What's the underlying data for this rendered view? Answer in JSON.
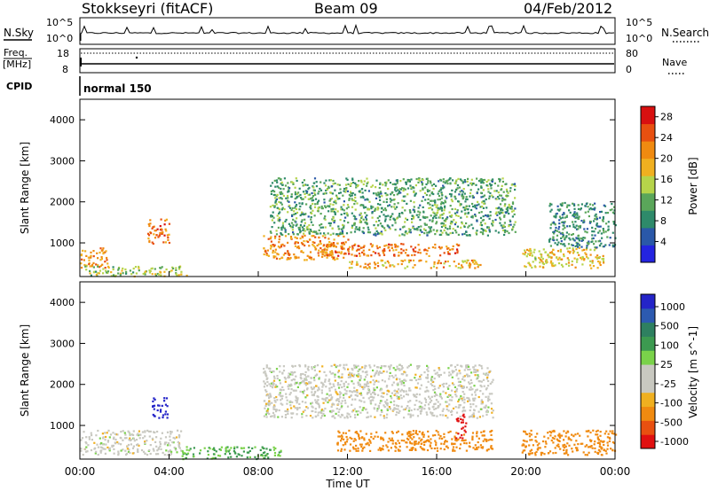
{
  "header": {
    "station": "Stokkseyri (fitACF)",
    "beam": "Beam 09",
    "date": "04/Feb/2012"
  },
  "noise_panel": {
    "left_label": "N.Sky",
    "right_label": "N.Search",
    "top_tick": "10^5",
    "bottom_tick": "10^0"
  },
  "freq_panel": {
    "left_label": "Freq.",
    "left_unit": "[MHz]",
    "left_ticks": [
      "18",
      "8"
    ],
    "right_label": "Nave",
    "right_ticks": [
      "80",
      "0"
    ]
  },
  "cpid": {
    "label": "CPID",
    "value": "normal 150"
  },
  "colors": {
    "power_scale": [
      "#2424e0",
      "#2a58a8",
      "#2e8a6a",
      "#5aa65a",
      "#b6d44a",
      "#f0b020",
      "#f08a10",
      "#e85010",
      "#d81010"
    ],
    "velocity_scale": [
      "#e01010",
      "#e85010",
      "#f08a10",
      "#f0b020",
      "#c8c8c0",
      "#c8c8c0",
      "#7ad24a",
      "#3c9a50",
      "#2e8060",
      "#2c5ab0",
      "#2424c8"
    ]
  },
  "chart_data": [
    {
      "type": "heatmap",
      "title": "Power",
      "xlabel": "Time UT",
      "ylabel": "Slant Range [km]",
      "xlim": [
        "00:00",
        "24:00"
      ],
      "ylim": [
        180,
        4500
      ],
      "x_ticks": [
        "00:00",
        "04:00",
        "08:00",
        "12:00",
        "16:00",
        "20:00",
        "00:00"
      ],
      "y_ticks": [
        1000,
        2000,
        3000,
        4000
      ],
      "colorbar_label": "Power [dB]",
      "colorbar_ticks": [
        "4",
        "8",
        "12",
        "16",
        "20",
        "24",
        "28"
      ],
      "colorbar_range": [
        0,
        30
      ],
      "echo_regions": [
        {
          "t_start": 0.0,
          "t_end": 1.2,
          "range_min": 400,
          "range_max": 900,
          "value": 22
        },
        {
          "t_start": 0.2,
          "t_end": 4.8,
          "range_min": 200,
          "range_max": 450,
          "value": 14
        },
        {
          "t_start": 3.0,
          "t_end": 4.0,
          "range_min": 1000,
          "range_max": 1600,
          "value": 24
        },
        {
          "t_start": 8.2,
          "t_end": 12.0,
          "range_min": 600,
          "range_max": 1200,
          "value": 22
        },
        {
          "t_start": 8.5,
          "t_end": 19.5,
          "range_min": 1200,
          "range_max": 2600,
          "value": 10
        },
        {
          "t_start": 10.5,
          "t_end": 17.0,
          "range_min": 700,
          "range_max": 1000,
          "value": 24
        },
        {
          "t_start": 12.0,
          "t_end": 18.0,
          "range_min": 400,
          "range_max": 600,
          "value": 20
        },
        {
          "t_start": 19.8,
          "t_end": 23.5,
          "range_min": 400,
          "range_max": 900,
          "value": 18
        },
        {
          "t_start": 21.0,
          "t_end": 24.0,
          "range_min": 900,
          "range_max": 2000,
          "value": 8
        }
      ]
    },
    {
      "type": "heatmap",
      "title": "Velocity",
      "xlabel": "Time UT",
      "ylabel": "Slant Range [km]",
      "xlim": [
        "00:00",
        "24:00"
      ],
      "ylim": [
        180,
        4500
      ],
      "x_ticks": [
        "00:00",
        "04:00",
        "08:00",
        "12:00",
        "16:00",
        "20:00",
        "00:00"
      ],
      "y_ticks": [
        1000,
        2000,
        3000,
        4000
      ],
      "colorbar_label": "Velocity [m s^-1]",
      "colorbar_ticks": [
        "1000",
        "500",
        "100",
        "25",
        "-25",
        "-100",
        "-500",
        "-1000"
      ],
      "echo_regions": [
        {
          "t_start": 0.0,
          "t_end": 4.5,
          "range_min": 300,
          "range_max": 900,
          "value": 0
        },
        {
          "t_start": 3.2,
          "t_end": 3.9,
          "range_min": 1200,
          "range_max": 1700,
          "value": 1000
        },
        {
          "t_start": 8.2,
          "t_end": 18.5,
          "range_min": 1200,
          "range_max": 2500,
          "value": 0
        },
        {
          "t_start": 11.5,
          "t_end": 18.5,
          "range_min": 400,
          "range_max": 900,
          "value": -300
        },
        {
          "t_start": 16.8,
          "t_end": 17.3,
          "range_min": 700,
          "range_max": 1300,
          "value": -1000
        },
        {
          "t_start": 19.8,
          "t_end": 24.0,
          "range_min": 300,
          "range_max": 900,
          "value": -300
        },
        {
          "t_start": 4.5,
          "t_end": 9.0,
          "range_min": 200,
          "range_max": 500,
          "value": 100
        }
      ]
    }
  ]
}
